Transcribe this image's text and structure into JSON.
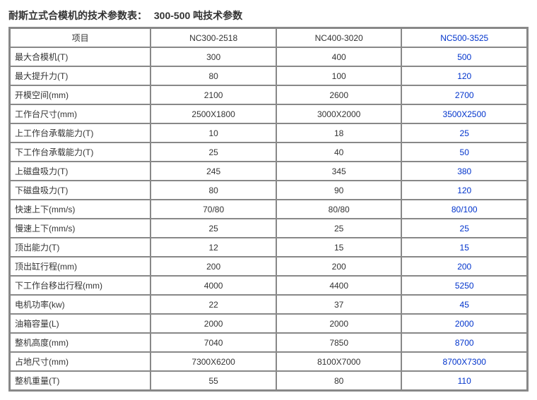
{
  "title": "耐斯立式合模机的技术参数表：",
  "subtitle": "300-500 吨技术参数",
  "header": {
    "param_label": "项目",
    "models": [
      "NC300-2518",
      "NC400-3020",
      "NC500-3525"
    ],
    "highlight_col": 2
  },
  "colors": {
    "text": "#333333",
    "highlight": "#0033cc",
    "border": "#888888",
    "background": "#ffffff"
  },
  "font_size_header_pt": 14,
  "font_size_body_pt": 12,
  "rows": [
    {
      "label": "最大合模机(T)",
      "values": [
        "300",
        "400",
        "500"
      ]
    },
    {
      "label": "最大提升力(T)",
      "values": [
        "80",
        "100",
        "120"
      ]
    },
    {
      "label": "开模空间(mm)",
      "values": [
        "2100",
        "2600",
        "2700"
      ]
    },
    {
      "label": "工作台尺寸(mm)",
      "values": [
        "2500X1800",
        "3000X2000",
        "3500X2500"
      ]
    },
    {
      "label": "上工作台承载能力(T)",
      "values": [
        "10",
        "18",
        "25"
      ]
    },
    {
      "label": "下工作台承载能力(T)",
      "values": [
        "25",
        "40",
        "50"
      ]
    },
    {
      "label": "上磁盘吸力(T)",
      "values": [
        "245",
        "345",
        "380"
      ]
    },
    {
      "label": "下磁盘吸力(T)",
      "values": [
        "80",
        "90",
        "120"
      ]
    },
    {
      "label": "快速上下(mm/s)",
      "values": [
        "70/80",
        "80/80",
        "80/100"
      ]
    },
    {
      "label": "慢速上下(mm/s)",
      "values": [
        "25",
        "25",
        "25"
      ]
    },
    {
      "label": "顶出能力(T)",
      "values": [
        "12",
        "15",
        "15"
      ]
    },
    {
      "label": "顶出缸行程(mm)",
      "values": [
        "200",
        "200",
        "200"
      ]
    },
    {
      "label": "下工作台移出行程(mm)",
      "values": [
        "4000",
        "4400",
        "5250"
      ]
    },
    {
      "label": "电机功率(kw)",
      "values": [
        "22",
        "37",
        "45"
      ]
    },
    {
      "label": "油箱容量(L)",
      "values": [
        "2000",
        "2000",
        "2000"
      ]
    },
    {
      "label": "整机高度(mm)",
      "values": [
        "7040",
        "7850",
        "8700"
      ]
    },
    {
      "label": "占地尺寸(mm)",
      "values": [
        "7300X6200",
        "8100X7000",
        "8700X7300"
      ]
    },
    {
      "label": "整机重量(T)",
      "values": [
        "55",
        "80",
        "110"
      ]
    }
  ]
}
